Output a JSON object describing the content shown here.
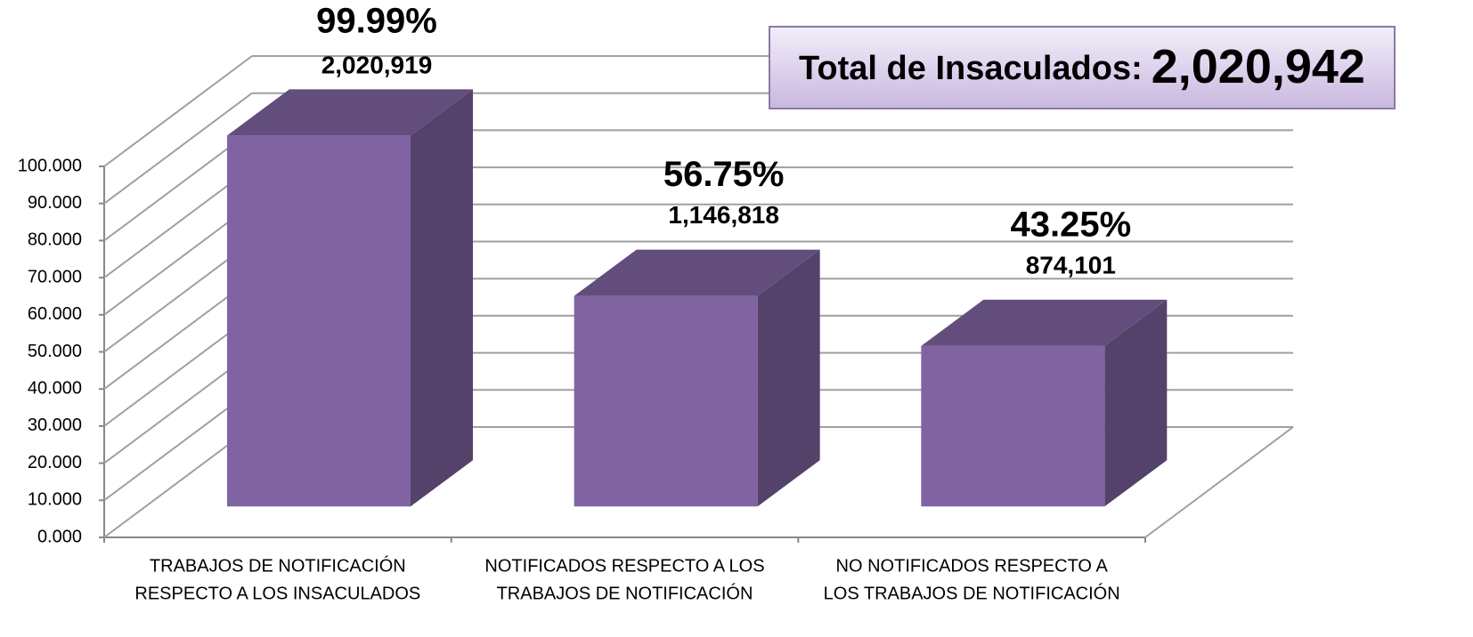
{
  "chart_data": {
    "type": "bar3d",
    "categories": [
      [
        "TRABAJOS DE NOTIFICACIÓN",
        "RESPECTO A LOS INSACULADOS"
      ],
      [
        "NOTIFICADOS RESPECTO A LOS",
        "TRABAJOS DE NOTIFICACIÓN"
      ],
      [
        "NO NOTIFICADOS RESPECTO A",
        "LOS TRABAJOS DE NOTIFICACIÓN"
      ]
    ],
    "values": [
      99.99,
      56.75,
      43.25
    ],
    "value_labels": [
      "99.99%",
      "56.75%",
      "43.25%"
    ],
    "counts": [
      "2,020,919",
      "1,146,818",
      "874,101"
    ],
    "color": "#8064a2",
    "ylim": [
      0,
      100
    ],
    "yticks": [
      {
        "value": 0,
        "label": "0.000"
      },
      {
        "value": 10,
        "label": "10.000"
      },
      {
        "value": 20,
        "label": "20.000"
      },
      {
        "value": 30,
        "label": "30.000"
      },
      {
        "value": 40,
        "label": "40.000"
      },
      {
        "value": 50,
        "label": "50.000"
      },
      {
        "value": 60,
        "label": "60.000"
      },
      {
        "value": 70,
        "label": "70.000"
      },
      {
        "value": 80,
        "label": "80.000"
      },
      {
        "value": 90,
        "label": "90.000"
      },
      {
        "value": 100,
        "label": "100.000"
      }
    ],
    "grid": true,
    "total": {
      "label": "Total de Insaculados:",
      "value": "2,020,942"
    }
  }
}
